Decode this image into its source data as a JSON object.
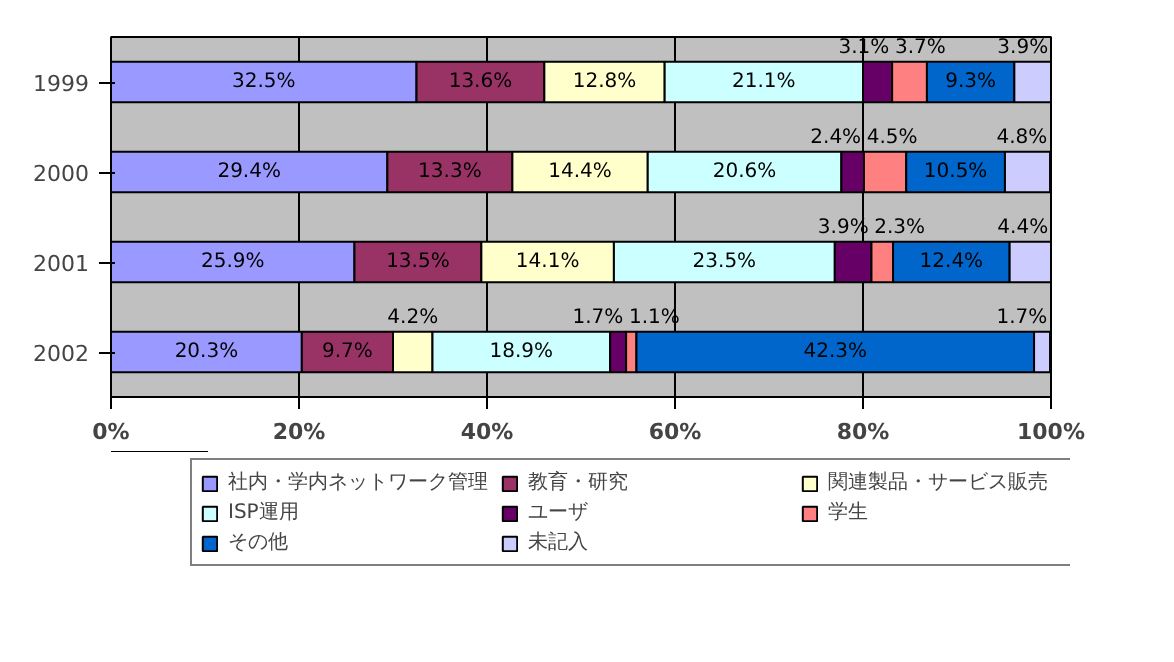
{
  "chart_data": {
    "type": "bar",
    "orientation": "horizontal",
    "stacked": true,
    "categories": [
      "1999",
      "2000",
      "2001",
      "2002"
    ],
    "series": [
      {
        "name": "社内・学内ネットワーク管理",
        "color": "#9999ff",
        "values": [
          32.5,
          29.4,
          25.9,
          20.3
        ],
        "value_labels": [
          "32.5%",
          "29.4%",
          "25.9%",
          "20.3%"
        ]
      },
      {
        "name": "教育・研究",
        "color": "#993366",
        "values": [
          13.6,
          13.3,
          13.5,
          9.7
        ],
        "value_labels": [
          "13.6%",
          "13.3%",
          "13.5%",
          "9.7%"
        ]
      },
      {
        "name": "関連製品・サービス販売",
        "color": "#ffffcc",
        "values": [
          12.8,
          14.4,
          14.1,
          4.2
        ],
        "value_labels": [
          "12.8%",
          "14.4%",
          "14.1%",
          "4.2%"
        ]
      },
      {
        "name": "ISP運用",
        "color": "#ccffff",
        "values": [
          21.1,
          20.6,
          23.5,
          18.9
        ],
        "value_labels": [
          "21.1%",
          "20.6%",
          "23.5%",
          "18.9%"
        ]
      },
      {
        "name": "ユーザ",
        "color": "#660066",
        "values": [
          3.1,
          2.4,
          3.9,
          1.7
        ],
        "value_labels": [
          "3.1%",
          "2.4%",
          "3.9%",
          "1.7%"
        ]
      },
      {
        "name": "学生",
        "color": "#ff8080",
        "values": [
          3.7,
          4.5,
          2.3,
          1.1
        ],
        "value_labels": [
          "3.7%",
          "4.5%",
          "2.3%",
          "1.1%"
        ]
      },
      {
        "name": "その他",
        "color": "#0066cc",
        "values": [
          9.3,
          10.5,
          12.4,
          42.3
        ],
        "value_labels": [
          "9.3%",
          "10.5%",
          "12.4%",
          "42.3%"
        ]
      },
      {
        "name": "未記入",
        "color": "#ccccff",
        "values": [
          3.9,
          4.8,
          4.4,
          1.7
        ],
        "value_labels": [
          "3.9%",
          "4.8%",
          "4.4%",
          "1.7%"
        ]
      }
    ],
    "xlim": [
      0,
      100
    ],
    "xticks": [
      {
        "value": 0,
        "label": "0%"
      },
      {
        "value": 20,
        "label": "20%"
      },
      {
        "value": 40,
        "label": "40%"
      },
      {
        "value": 60,
        "label": "60%"
      },
      {
        "value": 80,
        "label": "80%"
      },
      {
        "value": 100,
        "label": "100%"
      }
    ],
    "grid": "x",
    "legend": "bottom"
  }
}
